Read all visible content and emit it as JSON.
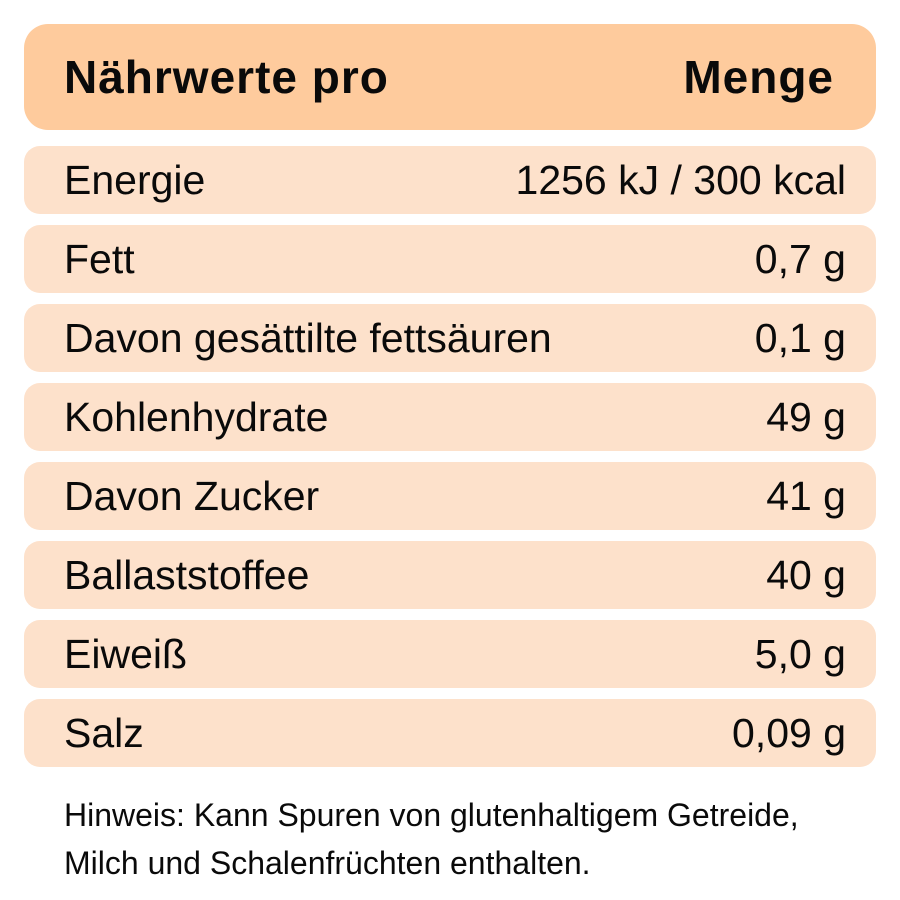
{
  "colors": {
    "header_background": "#fecb9d",
    "row_background": "#fde1cb",
    "text": "#0a0a0a",
    "page_background": "#ffffff"
  },
  "header": {
    "left_label": "Nährwerte pro",
    "right_label": "Menge"
  },
  "rows": [
    {
      "label": "Energie",
      "value": "1256 kJ / 300 kcal"
    },
    {
      "label": "Fett",
      "value": "0,7 g"
    },
    {
      "label": "Davon gesättilte fettsäuren",
      "value": "0,1 g"
    },
    {
      "label": "Kohlenhydrate",
      "value": "49 g"
    },
    {
      "label": "Davon Zucker",
      "value": "41 g"
    },
    {
      "label": "Ballaststoffee",
      "value": "40 g"
    },
    {
      "label": "Eiweiß",
      "value": "5,0 g"
    },
    {
      "label": "Salz",
      "value": "0,09 g"
    }
  ],
  "footer": {
    "lines": [
      "Hinweis: Kann Spuren von glutenhaltigem Getreide,",
      "Milch und Schalenfrüchten enthalten."
    ]
  }
}
